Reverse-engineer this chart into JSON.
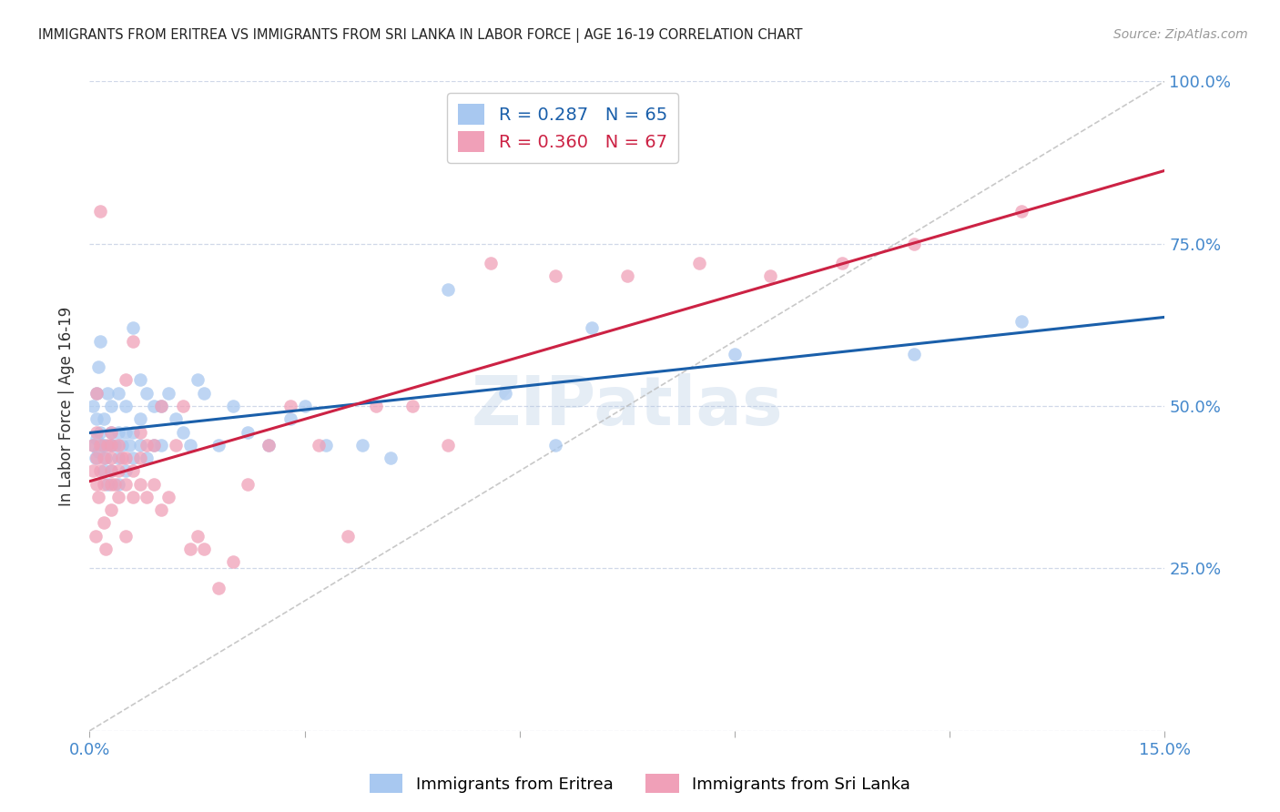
{
  "title": "IMMIGRANTS FROM ERITREA VS IMMIGRANTS FROM SRI LANKA IN LABOR FORCE | AGE 16-19 CORRELATION CHART",
  "source": "Source: ZipAtlas.com",
  "ylabel": "In Labor Force | Age 16-19",
  "legend_eritrea": "Immigrants from Eritrea",
  "legend_srilanka": "Immigrants from Sri Lanka",
  "r_eritrea": 0.287,
  "n_eritrea": 65,
  "r_srilanka": 0.36,
  "n_srilanka": 67,
  "xlim": [
    0.0,
    0.15
  ],
  "ylim": [
    0.0,
    1.0
  ],
  "xticks": [
    0.0,
    0.03,
    0.06,
    0.09,
    0.12,
    0.15
  ],
  "yticks": [
    0.0,
    0.25,
    0.5,
    0.75,
    1.0
  ],
  "color_eritrea": "#a8c8f0",
  "color_srilanka": "#f0a0b8",
  "line_color_eritrea": "#1a5faa",
  "line_color_srilanka": "#cc2244",
  "scatter_eritrea_x": [
    0.0005,
    0.0005,
    0.0008,
    0.001,
    0.001,
    0.001,
    0.0012,
    0.0012,
    0.0015,
    0.0015,
    0.0018,
    0.002,
    0.002,
    0.002,
    0.0022,
    0.0025,
    0.0025,
    0.003,
    0.003,
    0.003,
    0.003,
    0.0035,
    0.004,
    0.004,
    0.004,
    0.004,
    0.0045,
    0.005,
    0.005,
    0.005,
    0.0055,
    0.006,
    0.006,
    0.006,
    0.007,
    0.007,
    0.007,
    0.008,
    0.008,
    0.009,
    0.009,
    0.01,
    0.01,
    0.011,
    0.012,
    0.013,
    0.014,
    0.015,
    0.016,
    0.018,
    0.02,
    0.022,
    0.025,
    0.028,
    0.03,
    0.033,
    0.038,
    0.042,
    0.05,
    0.058,
    0.065,
    0.07,
    0.09,
    0.115,
    0.13
  ],
  "scatter_eritrea_y": [
    0.44,
    0.5,
    0.42,
    0.45,
    0.48,
    0.52,
    0.43,
    0.56,
    0.46,
    0.6,
    0.44,
    0.4,
    0.44,
    0.48,
    0.42,
    0.38,
    0.52,
    0.4,
    0.44,
    0.46,
    0.5,
    0.44,
    0.38,
    0.42,
    0.46,
    0.52,
    0.44,
    0.4,
    0.46,
    0.5,
    0.44,
    0.42,
    0.46,
    0.62,
    0.44,
    0.48,
    0.54,
    0.42,
    0.52,
    0.44,
    0.5,
    0.44,
    0.5,
    0.52,
    0.48,
    0.46,
    0.44,
    0.54,
    0.52,
    0.44,
    0.5,
    0.46,
    0.44,
    0.48,
    0.5,
    0.44,
    0.44,
    0.42,
    0.68,
    0.52,
    0.44,
    0.62,
    0.58,
    0.58,
    0.63
  ],
  "scatter_srilanka_x": [
    0.0005,
    0.0005,
    0.0008,
    0.001,
    0.001,
    0.001,
    0.001,
    0.0012,
    0.0015,
    0.0015,
    0.0015,
    0.002,
    0.002,
    0.002,
    0.0022,
    0.0025,
    0.003,
    0.003,
    0.003,
    0.003,
    0.003,
    0.003,
    0.0035,
    0.004,
    0.004,
    0.004,
    0.0045,
    0.005,
    0.005,
    0.005,
    0.005,
    0.006,
    0.006,
    0.006,
    0.007,
    0.007,
    0.007,
    0.008,
    0.008,
    0.009,
    0.009,
    0.01,
    0.01,
    0.011,
    0.012,
    0.013,
    0.014,
    0.015,
    0.016,
    0.018,
    0.02,
    0.022,
    0.025,
    0.028,
    0.032,
    0.036,
    0.04,
    0.045,
    0.05,
    0.056,
    0.065,
    0.075,
    0.085,
    0.095,
    0.105,
    0.115,
    0.13
  ],
  "scatter_srilanka_y": [
    0.4,
    0.44,
    0.3,
    0.38,
    0.42,
    0.46,
    0.52,
    0.36,
    0.4,
    0.44,
    0.8,
    0.32,
    0.38,
    0.42,
    0.28,
    0.44,
    0.34,
    0.38,
    0.4,
    0.42,
    0.44,
    0.46,
    0.38,
    0.36,
    0.4,
    0.44,
    0.42,
    0.3,
    0.38,
    0.42,
    0.54,
    0.36,
    0.4,
    0.6,
    0.38,
    0.42,
    0.46,
    0.36,
    0.44,
    0.38,
    0.44,
    0.34,
    0.5,
    0.36,
    0.44,
    0.5,
    0.28,
    0.3,
    0.28,
    0.22,
    0.26,
    0.38,
    0.44,
    0.5,
    0.44,
    0.3,
    0.5,
    0.5,
    0.44,
    0.72,
    0.7,
    0.7,
    0.72,
    0.7,
    0.72,
    0.75,
    0.8
  ],
  "diag_line_x": [
    0.0,
    0.15
  ],
  "diag_line_y": [
    0.0,
    1.0
  ],
  "watermark": "ZIPatlas",
  "background_color": "#ffffff",
  "axis_color": "#4488cc",
  "grid_color": "#d0d8e8",
  "title_color": "#222222",
  "source_color": "#999999"
}
